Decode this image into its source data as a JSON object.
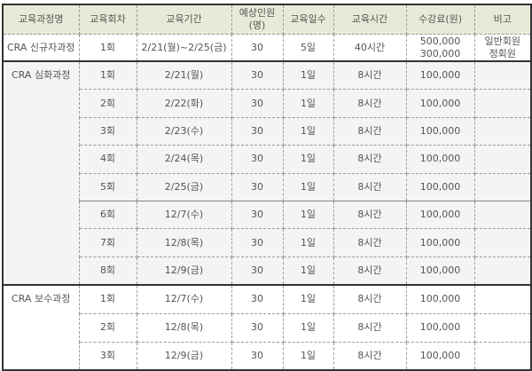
{
  "headers": [
    "교육과정명",
    "교육회차",
    "교육기간",
    "예상인원(명)",
    "교육일수",
    "교육시간",
    "수강료(원)",
    "비고"
  ],
  "courses": [
    {
      "name": "CRA 신규자과정",
      "rows": [
        {
          "session": "1회",
          "period": "2/21(월)~2/25(금)",
          "capacity": "30",
          "days": "5일",
          "hours": "40시간",
          "fee": "500,000",
          "fee2": "300,000",
          "note": "일반회원",
          "note2": "정회원"
        }
      ]
    },
    {
      "name": "CRA 심화과정",
      "rows": [
        {
          "session": "1회",
          "period": "2/21(월)",
          "capacity": "30",
          "days": "1일",
          "hours": "8시간",
          "fee": "100,000"
        },
        {
          "session": "2회",
          "period": "2/22(화)",
          "capacity": "30",
          "days": "1일",
          "hours": "8시간",
          "fee": "100,000"
        },
        {
          "session": "3회",
          "period": "2/23(수)",
          "capacity": "30",
          "days": "1일",
          "hours": "8시간",
          "fee": "100,000"
        },
        {
          "session": "4회",
          "period": "2/24(목)",
          "capacity": "30",
          "days": "1일",
          "hours": "8시간",
          "fee": "100,000"
        },
        {
          "session": "5회",
          "period": "2/25(금)",
          "capacity": "30",
          "days": "1일",
          "hours": "8시간",
          "fee": "100,000"
        },
        {
          "session": "6회",
          "period": "12/7(수)",
          "capacity": "30",
          "days": "1일",
          "hours": "8시간",
          "fee": "100,000"
        },
        {
          "session": "7회",
          "period": "12/8(목)",
          "capacity": "30",
          "days": "1일",
          "hours": "8시간",
          "fee": "100,000"
        },
        {
          "session": "8회",
          "period": "12/9(금)",
          "capacity": "30",
          "days": "1일",
          "hours": "8시간",
          "fee": "100,000"
        }
      ]
    },
    {
      "name": "CRA 보수과정",
      "rows": [
        {
          "session": "1회",
          "period": "12/7(수)",
          "capacity": "30",
          "days": "1일",
          "hours": "8시간",
          "fee": "100,000"
        },
        {
          "session": "2회",
          "period": "12/8(목)",
          "capacity": "30",
          "days": "1일",
          "hours": "8시간",
          "fee": "100,000"
        },
        {
          "session": "3회",
          "period": "12/9(금)",
          "capacity": "30",
          "days": "1일",
          "hours": "8시간",
          "fee": "100,000"
        }
      ]
    }
  ],
  "colors": {
    "header_bg": "#e6ebd8",
    "advanced_bg": "#f4f4f4"
  }
}
